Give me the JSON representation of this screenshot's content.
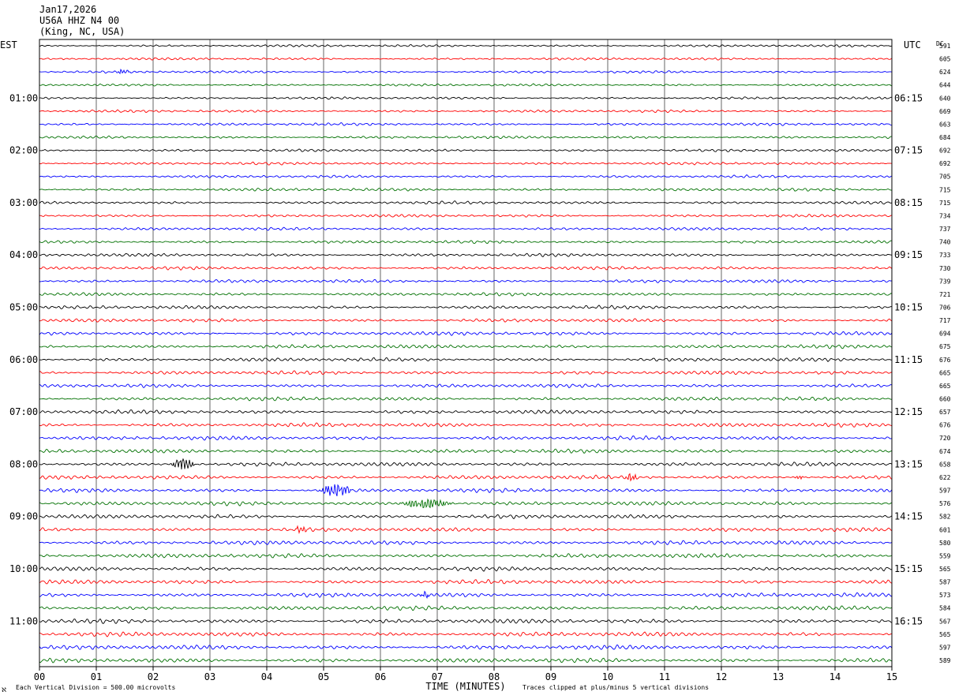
{
  "header": {
    "date": "Jan17,2026",
    "station": "U56A HHZ N4 00",
    "location": "(King, NC, USA)"
  },
  "left_zone": "EST",
  "right_zone": "UTC",
  "dc_heading": "DC",
  "footer": {
    "scale_note": "Each Vertical Division =  500.00 microvolts",
    "clip_note": "Traces clipped at plus/minus 5 vertical divisions",
    "corner_mark": "ℵ"
  },
  "chart_data": {
    "type": "line",
    "title": "",
    "xlabel": "TIME (MINUTES)",
    "ylabel": "",
    "xlim": [
      0,
      15
    ],
    "x_ticks": [
      "00",
      "01",
      "02",
      "03",
      "04",
      "05",
      "06",
      "07",
      "08",
      "09",
      "10",
      "11",
      "12",
      "13",
      "14",
      "15"
    ],
    "grid": true,
    "trace_colors": [
      "#000000",
      "#ff0000",
      "#0000ff",
      "#007000"
    ],
    "trace_count": 48,
    "left_time_labels": [
      {
        "row": 4,
        "label": "01:00"
      },
      {
        "row": 8,
        "label": "02:00"
      },
      {
        "row": 12,
        "label": "03:00"
      },
      {
        "row": 16,
        "label": "04:00"
      },
      {
        "row": 20,
        "label": "05:00"
      },
      {
        "row": 24,
        "label": "06:00"
      },
      {
        "row": 28,
        "label": "07:00"
      },
      {
        "row": 32,
        "label": "08:00"
      },
      {
        "row": 36,
        "label": "09:00"
      },
      {
        "row": 40,
        "label": "10:00"
      },
      {
        "row": 44,
        "label": "11:00"
      }
    ],
    "right_time_labels": [
      {
        "row": 4,
        "label": "06:15"
      },
      {
        "row": 8,
        "label": "07:15"
      },
      {
        "row": 12,
        "label": "08:15"
      },
      {
        "row": 16,
        "label": "09:15"
      },
      {
        "row": 20,
        "label": "10:15"
      },
      {
        "row": 24,
        "label": "11:15"
      },
      {
        "row": 28,
        "label": "12:15"
      },
      {
        "row": 32,
        "label": "13:15"
      },
      {
        "row": 36,
        "label": "14:15"
      },
      {
        "row": 40,
        "label": "15:15"
      },
      {
        "row": 44,
        "label": "16:15"
      }
    ],
    "dc_offsets": [
      591,
      605,
      624,
      644,
      640,
      669,
      663,
      684,
      692,
      692,
      705,
      715,
      715,
      734,
      737,
      740,
      733,
      730,
      739,
      721,
      706,
      717,
      694,
      675,
      676,
      665,
      665,
      660,
      657,
      676,
      720,
      674,
      658,
      622,
      597,
      576,
      582,
      601,
      580,
      559,
      565,
      587,
      573,
      584,
      567,
      565,
      597,
      589
    ],
    "trace_amplitude_relative": [
      0.45,
      0.45,
      0.45,
      0.45,
      0.45,
      0.5,
      0.5,
      0.5,
      0.5,
      0.5,
      0.5,
      0.55,
      0.55,
      0.55,
      0.55,
      0.55,
      0.6,
      0.6,
      0.6,
      0.6,
      0.65,
      0.65,
      0.7,
      0.7,
      0.7,
      0.7,
      0.7,
      0.7,
      0.75,
      0.75,
      0.75,
      0.75,
      0.75,
      0.75,
      0.75,
      0.75,
      0.75,
      0.75,
      0.8,
      0.8,
      0.8,
      0.8,
      0.8,
      0.8,
      0.85,
      0.85,
      0.85,
      0.85
    ],
    "events": [
      {
        "row": 2,
        "minute_start": 1.3,
        "minute_end": 1.7,
        "amplitude": 0.8
      },
      {
        "row": 32,
        "minute_start": 2.3,
        "minute_end": 2.9,
        "amplitude": 2.0
      },
      {
        "row": 33,
        "minute_start": 10.3,
        "minute_end": 10.6,
        "amplitude": 1.6
      },
      {
        "row": 33,
        "minute_start": 13.3,
        "minute_end": 13.5,
        "amplitude": 1.0
      },
      {
        "row": 34,
        "minute_start": 4.9,
        "minute_end": 5.7,
        "amplitude": 2.2
      },
      {
        "row": 35,
        "minute_start": 6.3,
        "minute_end": 7.6,
        "amplitude": 1.6
      },
      {
        "row": 37,
        "minute_start": 4.5,
        "minute_end": 4.8,
        "amplitude": 1.3
      },
      {
        "row": 42,
        "minute_start": 6.7,
        "minute_end": 6.9,
        "amplitude": 1.2
      }
    ]
  }
}
